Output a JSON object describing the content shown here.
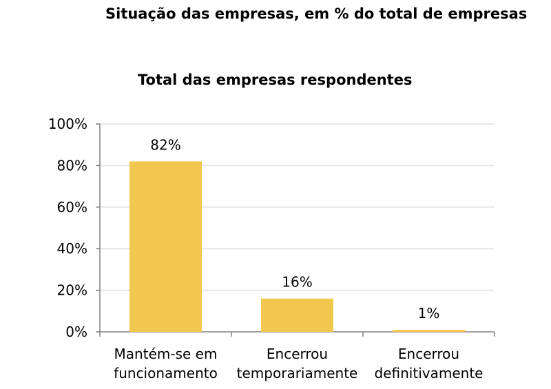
{
  "title": "Situação das empresas, em % do total de empresas",
  "chart_data": {
    "type": "bar",
    "title": "Total das empresas respondentes",
    "categories": [
      [
        "Mantém-se em",
        "funcionamento"
      ],
      [
        "Encerrou",
        "temporariamente"
      ],
      [
        "Encerrou",
        "definitivamente"
      ]
    ],
    "values": [
      82,
      16,
      1
    ],
    "data_labels": [
      "82%",
      "16%",
      "1%"
    ],
    "yticks": [
      "0%",
      "20%",
      "40%",
      "60%",
      "80%",
      "100%"
    ],
    "ylim": [
      0,
      100
    ],
    "grid": true,
    "bar_color": "#F2C74F",
    "grid_color": "#E6E6E6",
    "axis_color": "#808080"
  }
}
